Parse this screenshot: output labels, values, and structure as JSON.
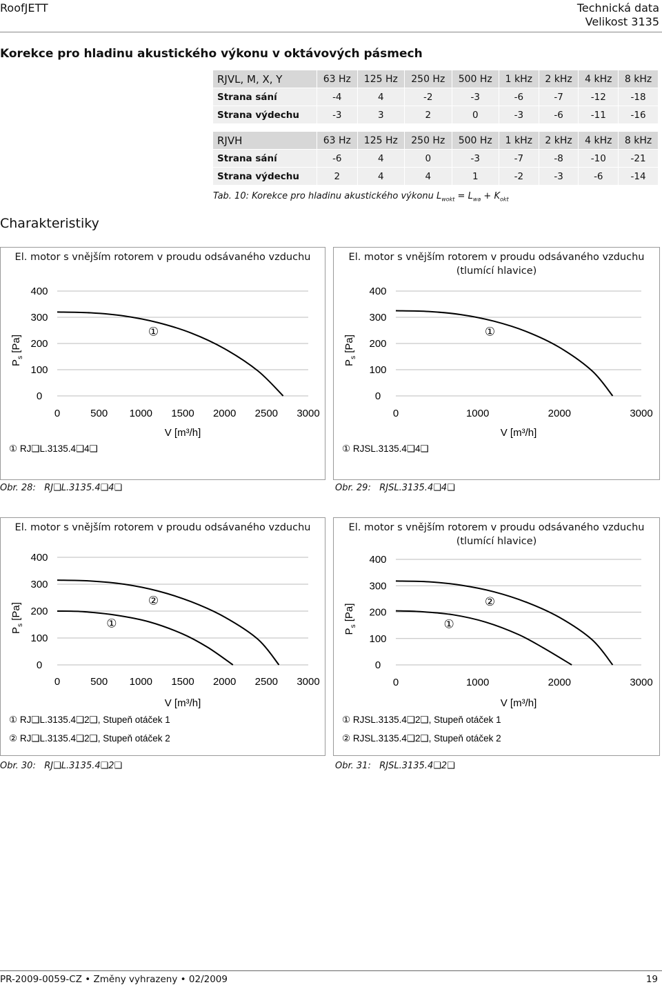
{
  "header": {
    "brand": "RoofJETT",
    "section": "Technická data",
    "size": "Velikost 3135"
  },
  "section_title": "Korekce pro hladinu akustického výkonu v oktávových pásmech",
  "tables": [
    {
      "head": [
        "RJVL, M, X, Y",
        "63 Hz",
        "125 Hz",
        "250 Hz",
        "500 Hz",
        "1 kHz",
        "2 kHz",
        "4 kHz",
        "8 kHz"
      ],
      "rows": [
        [
          "Strana sání",
          "-4",
          "4",
          "-2",
          "-3",
          "-6",
          "-7",
          "-12",
          "-18"
        ],
        [
          "Strana výdechu",
          "-3",
          "3",
          "2",
          "0",
          "-3",
          "-6",
          "-11",
          "-16"
        ]
      ]
    },
    {
      "head": [
        "RJVH",
        "63 Hz",
        "125 Hz",
        "250 Hz",
        "500 Hz",
        "1 kHz",
        "2 kHz",
        "4 kHz",
        "8 kHz"
      ],
      "rows": [
        [
          "Strana sání",
          "-6",
          "4",
          "0",
          "-3",
          "-7",
          "-8",
          "-10",
          "-21"
        ],
        [
          "Strana výdechu",
          "2",
          "4",
          "4",
          "1",
          "-2",
          "-3",
          "-6",
          "-14"
        ]
      ]
    }
  ],
  "table_caption": {
    "prefix": "Tab. 10: Korekce pro hladinu akustického výkonu L",
    "sub1": "wokt",
    "mid1": " = L",
    "sub2": "wa",
    "mid2": " + K",
    "sub3": "okt"
  },
  "section2_title": "Charakteristiky",
  "chart_data": [
    {
      "type": "line",
      "title": "El. motor s vnějším rotorem v proudu odsávaného vzduchu",
      "subtitle": "",
      "xlabel": "V [m³/h]",
      "ylabel": "Ps [Pa]",
      "xlim": [
        0,
        3000
      ],
      "ylim": [
        0,
        400
      ],
      "xticks": [
        "0",
        "500",
        "1000",
        "1500",
        "2000",
        "2500",
        "3000"
      ],
      "yticks": [
        "0",
        "100",
        "200",
        "300",
        "400"
      ],
      "series": [
        {
          "name": "RJ❑L.3135.4❑4❑",
          "marker": "①",
          "x": [
            0,
            400,
            800,
            1200,
            1600,
            2000,
            2400,
            2700
          ],
          "y": [
            320,
            317,
            305,
            280,
            240,
            180,
            95,
            0
          ]
        }
      ],
      "caption": {
        "label": "Obr. 28:",
        "text": "RJ❑L.3135.4❑4❑"
      }
    },
    {
      "type": "line",
      "title": "El. motor s vnějším rotorem v proudu odsávaného vzduchu",
      "subtitle": "(tlumící hlavice)",
      "xlabel": "V [m³/h]",
      "ylabel": "Ps [Pa]",
      "xlim": [
        0,
        3000
      ],
      "ylim": [
        0,
        400
      ],
      "xticks": [
        "0",
        "1000",
        "2000",
        "3000"
      ],
      "yticks": [
        "0",
        "100",
        "200",
        "300",
        "400"
      ],
      "series": [
        {
          "name": "RJSL.3135.4❑4❑",
          "marker": "①",
          "x": [
            0,
            400,
            800,
            1200,
            1600,
            2000,
            2400,
            2650
          ],
          "y": [
            325,
            322,
            310,
            285,
            245,
            185,
            95,
            0
          ]
        }
      ],
      "caption": {
        "label": "Obr. 29:",
        "text": "RJSL.3135.4❑4❑"
      }
    },
    {
      "type": "line",
      "title": "El. motor s vnějším rotorem v proudu odsávaného vzduchu",
      "subtitle": "",
      "xlabel": "V [m³/h]",
      "ylabel": "Ps [Pa]",
      "xlim": [
        0,
        3000
      ],
      "ylim": [
        0,
        400
      ],
      "xticks": [
        "0",
        "500",
        "1000",
        "1500",
        "2000",
        "2500",
        "3000"
      ],
      "yticks": [
        "0",
        "100",
        "200",
        "300",
        "400"
      ],
      "series": [
        {
          "name": "RJ❑L.3135.4❑2❑, Stupeň otáček 1",
          "marker": "①",
          "x": [
            0,
            300,
            700,
            1100,
            1500,
            1800,
            2100
          ],
          "y": [
            200,
            198,
            185,
            160,
            115,
            65,
            0
          ]
        },
        {
          "name": "RJ❑L.3135.4❑2❑, Stupeň otáček 2",
          "marker": "②",
          "x": [
            0,
            400,
            800,
            1200,
            1600,
            2000,
            2400,
            2650
          ],
          "y": [
            315,
            312,
            300,
            275,
            235,
            178,
            95,
            0
          ]
        }
      ],
      "caption": {
        "label": "Obr. 30:",
        "text": "RJ❑L.3135.4❑2❑"
      }
    },
    {
      "type": "line",
      "title": "El. motor s vnějším rotorem v proudu odsávaného vzduchu",
      "subtitle": "(tlumící hlavice)",
      "xlabel": "V [m³/h]",
      "ylabel": "Ps [Pa]",
      "xlim": [
        0,
        3000
      ],
      "ylim": [
        0,
        400
      ],
      "xticks": [
        "0",
        "1000",
        "2000",
        "3000"
      ],
      "yticks": [
        "0",
        "100",
        "200",
        "300",
        "400"
      ],
      "series": [
        {
          "name": "RJSL.3135.4❑2❑, Stupeň otáček 1",
          "marker": "①",
          "x": [
            0,
            300,
            700,
            1100,
            1500,
            1800,
            2150
          ],
          "y": [
            205,
            202,
            190,
            162,
            115,
            65,
            0
          ]
        },
        {
          "name": "RJSL.3135.4❑2❑, Stupeň otáček 2",
          "marker": "②",
          "x": [
            0,
            400,
            800,
            1200,
            1600,
            2000,
            2400,
            2650
          ],
          "y": [
            318,
            315,
            302,
            277,
            237,
            180,
            95,
            0
          ]
        }
      ],
      "caption": {
        "label": "Obr. 31:",
        "text": "RJSL.3135.4❑2❑"
      }
    }
  ],
  "footer": {
    "left": "PR-2009-0059-CZ • Změny vyhrazeny • 02/2009",
    "page": "19"
  }
}
